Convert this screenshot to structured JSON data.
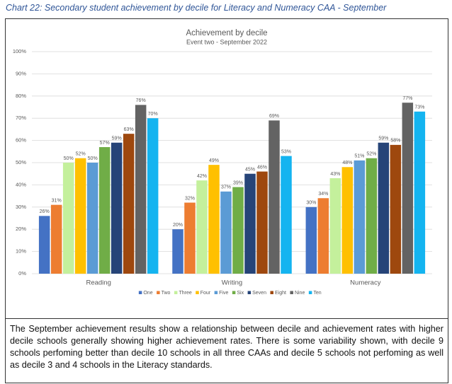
{
  "caption": "Chart 22: Secondary student achievement by decile for Literacy and Numeracy CAA - September",
  "chart_data": {
    "type": "bar",
    "title": "Achievement by decile",
    "subtitle": "Event two - September 2022",
    "categories": [
      "Reading",
      "Writing",
      "Numeracy"
    ],
    "series": [
      {
        "name": "One",
        "color": "#4472c4",
        "values": [
          26,
          20,
          30
        ],
        "value_labels": [
          "26%",
          "20%",
          "30%"
        ]
      },
      {
        "name": "Two",
        "color": "#ed7d31",
        "values": [
          31,
          32,
          34
        ],
        "value_labels": [
          "31%",
          "32%",
          "34%"
        ]
      },
      {
        "name": "Three",
        "color": "#c4f09c",
        "values": [
          50,
          42,
          43
        ],
        "value_labels": [
          "50%",
          "42%",
          "43%"
        ]
      },
      {
        "name": "Four",
        "color": "#ffc000",
        "values": [
          52,
          49,
          48
        ],
        "value_labels": [
          "52%",
          "49%",
          "48%"
        ]
      },
      {
        "name": "Five",
        "color": "#5b9bd5",
        "values": [
          50,
          37,
          51
        ],
        "value_labels": [
          "50%",
          "37%",
          "51%"
        ]
      },
      {
        "name": "Six",
        "color": "#70ad47",
        "values": [
          57,
          39,
          52
        ],
        "value_labels": [
          "57%",
          "39%",
          "52%"
        ]
      },
      {
        "name": "Seven",
        "color": "#264478",
        "values": [
          59,
          45,
          59
        ],
        "value_labels": [
          "59%",
          "45%",
          "59%"
        ]
      },
      {
        "name": "Eight",
        "color": "#9e480e",
        "values": [
          63,
          46,
          58
        ],
        "value_labels": [
          "63%",
          "46%",
          "58%"
        ]
      },
      {
        "name": "Nine",
        "color": "#636363",
        "values": [
          76,
          69,
          77
        ],
        "value_labels": [
          "76%",
          "69%",
          "77%"
        ]
      },
      {
        "name": "Ten",
        "color": "#14b4f0",
        "values": [
          70,
          53,
          73
        ],
        "value_labels": [
          "70%",
          "53%",
          "73%"
        ]
      }
    ],
    "ylim": [
      0,
      100
    ],
    "yticks": [
      {
        "value": 0,
        "label": "0%"
      },
      {
        "value": 10,
        "label": "10%"
      },
      {
        "value": 20,
        "label": "20%"
      },
      {
        "value": 30,
        "label": "30%"
      },
      {
        "value": 40,
        "label": "40%"
      },
      {
        "value": 50,
        "label": "50%"
      },
      {
        "value": 60,
        "label": "60%"
      },
      {
        "value": 70,
        "label": "70%"
      },
      {
        "value": 80,
        "label": "80%"
      },
      {
        "value": 90,
        "label": "90%"
      },
      {
        "value": 100,
        "label": "100%"
      }
    ],
    "grid": true,
    "legend": "bottom"
  },
  "note": "The September achievement results show a relationship between decile and achievement rates with higher decile schools generally showing higher achievement rates. There is some variability shown, with decile 9 schools perfoming better than decile 10 schools in all three CAAs and decile 5 schools not perfoming as well as decile 3 and 4 schools in the Literacy standards."
}
